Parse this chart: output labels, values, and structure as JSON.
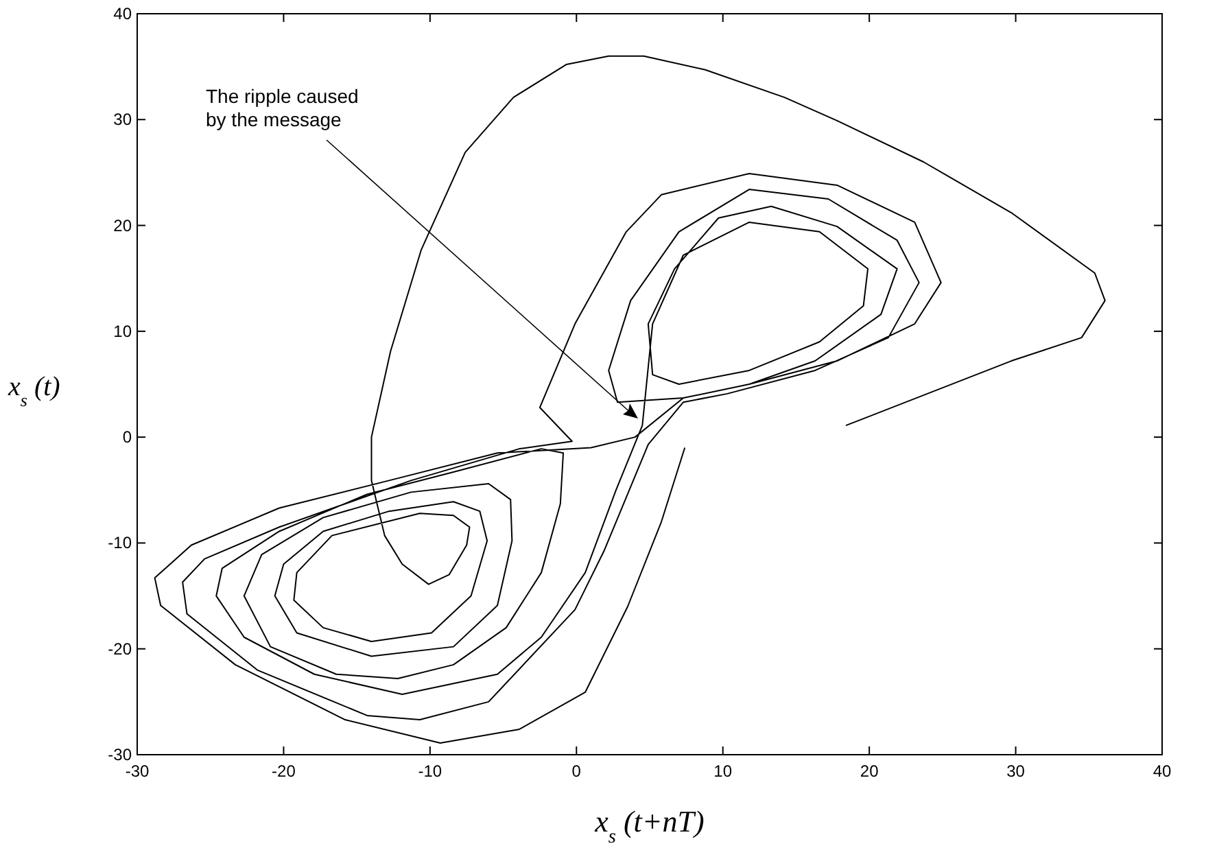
{
  "chart_data": {
    "type": "line",
    "xlabel": "x$_{s}$(t+nT)",
    "ylabel": "x$_{s}$(t)",
    "xlim": [
      -30,
      40
    ],
    "ylim": [
      -30,
      40
    ],
    "xticks": [
      -30,
      -20,
      -10,
      0,
      10,
      20,
      30,
      40
    ],
    "yticks": [
      -30,
      -20,
      -10,
      0,
      10,
      20,
      30,
      40
    ],
    "grid": false,
    "marker": "none",
    "line_style": "solid",
    "annotations": [
      "The ripple caused\nby the message"
    ],
    "series": [
      {
        "color": "#000000",
        "x": [
          18.4,
          29.7,
          34.5,
          36.1,
          35.4,
          29.7,
          23.7,
          17.8,
          14.2,
          8.8,
          4.6,
          2.2,
          -0.7,
          -4.3,
          -7.6,
          -10.6,
          -12.7,
          -14,
          -14,
          -13.1,
          -11.9,
          -10.1,
          -8.7,
          -7.5,
          -7.3,
          -8.4,
          -10.7,
          -16.7,
          -19.1,
          -19.3,
          -17.3,
          -14,
          -9.9,
          -7.2,
          -6.1,
          -6.6,
          -8.4,
          -12.8,
          -17.3,
          -20,
          -20.6,
          -19.1,
          -14,
          -8.4,
          -5.4,
          -4.4,
          -4.5,
          -6,
          -11.3,
          -17.3,
          -21.5,
          -22.7,
          -20.9,
          -16.4,
          -12.2,
          -8.4,
          -4.8,
          -2.4,
          -1.1,
          -0.9,
          -2.4,
          -8.4,
          -14.3,
          -20.3,
          -24.2,
          -24.6,
          -22.7,
          -17.9,
          -11.9,
          -5.4,
          -2.4,
          0.6,
          2.7,
          4.5,
          5.2,
          7.3,
          11.8,
          16.6,
          19.9,
          19.6,
          16.6,
          11.8,
          7,
          5.2,
          4.9,
          6.7,
          9.7,
          13.3,
          17.8,
          21.9,
          20.8,
          16.3,
          11.8,
          7.3,
          2.8,
          2.2,
          3.7,
          7,
          11.8,
          17.2,
          21.9,
          23.4,
          21.3,
          16.3,
          10.3,
          7.3,
          4.9,
          1.9,
          -0.1,
          -6,
          -10.7,
          -14.3,
          -21.8,
          -26.6,
          -26.9,
          -25.4,
          -20.3,
          -11.3,
          -3.9,
          -0.3,
          -2.5,
          -0.1,
          3.4,
          5.8,
          11.8,
          17.8,
          23.1,
          24.9,
          23.1,
          17.8,
          11.8,
          7.3,
          4,
          1,
          -5.4,
          -12.8,
          -20.3,
          -26.3,
          -28.8,
          -28.4,
          -23.3,
          -15.8,
          -9.3,
          -3.9,
          0.6,
          3.5,
          5.8,
          7.4
        ],
        "values": [
          1.1,
          7.2,
          9.4,
          12.9,
          15.5,
          21.2,
          26,
          29.9,
          32.1,
          34.7,
          36,
          36,
          35.2,
          32.1,
          26.9,
          17.7,
          8.1,
          0,
          -4.1,
          -9.3,
          -12,
          -13.9,
          -13,
          -10.2,
          -8.5,
          -7.4,
          -7.2,
          -9.3,
          -12.8,
          -15.4,
          -18,
          -19.3,
          -18.5,
          -15,
          -9.8,
          -7,
          -6.1,
          -7,
          -8.9,
          -12,
          -15,
          -18.5,
          -20.7,
          -19.8,
          -15.9,
          -9.8,
          -5.9,
          -4.4,
          -5.2,
          -7.6,
          -11.1,
          -15,
          -19.8,
          -22.4,
          -22.8,
          -21.5,
          -18,
          -12.8,
          -6.3,
          -1.5,
          -1.1,
          -3.3,
          -5.4,
          -8.9,
          -12.4,
          -15,
          -18.9,
          -22.4,
          -24.3,
          -22.4,
          -18.9,
          -12.8,
          -5,
          1.1,
          10.7,
          17.2,
          20.3,
          19.4,
          15.9,
          12.4,
          9,
          6.3,
          5,
          5.9,
          10.7,
          15.9,
          20.7,
          21.8,
          19.9,
          15.9,
          11.6,
          7.2,
          5,
          3.7,
          3.3,
          6.3,
          12.9,
          19.4,
          23.4,
          22.5,
          18.6,
          14.6,
          9.4,
          6.3,
          4.1,
          3.3,
          -0.7,
          -10.7,
          -16.3,
          -25,
          -26.7,
          -26.3,
          -22,
          -16.7,
          -13.7,
          -11.5,
          -8.5,
          -4.1,
          -1.1,
          -0.4,
          2.8,
          10.7,
          19.4,
          22.9,
          24.9,
          23.8,
          20.3,
          14.6,
          10.7,
          7.2,
          5,
          3.7,
          0,
          -1,
          -1.5,
          -4.1,
          -6.7,
          -10.2,
          -13.3,
          -15.9,
          -21.5,
          -26.7,
          -28.9,
          -27.6,
          -24.1,
          -16,
          -8,
          -1
        ]
      }
    ]
  }
}
